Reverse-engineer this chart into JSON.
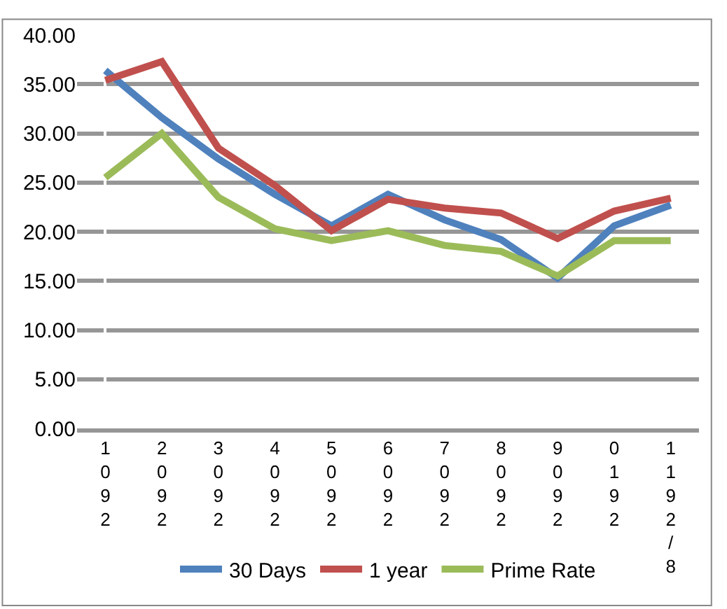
{
  "chart_data": {
    "type": "line",
    "categories": [
      "1\n0\n9\n2",
      "2\n0\n9\n2",
      "3\n0\n9\n2",
      "4\n0\n9\n2",
      "5\n0\n9\n2",
      "6\n0\n9\n2",
      "7\n0\n9\n2",
      "8\n0\n9\n2",
      "9\n0\n9\n2",
      "0\n1\n9\n2",
      "1\n1\n9\n2\n/\n8"
    ],
    "series": [
      {
        "name": "30 Days",
        "color": "#4f81bd",
        "values": [
          36.4,
          31.6,
          27.4,
          23.8,
          20.6,
          23.8,
          21.2,
          19.2,
          15.3,
          20.6,
          22.7
        ]
      },
      {
        "name": "1 year",
        "color": "#c0504d",
        "values": [
          35.4,
          37.3,
          28.5,
          24.7,
          20.1,
          23.3,
          22.4,
          21.9,
          19.3,
          22.1,
          23.4
        ]
      },
      {
        "name": "Prime Rate",
        "color": "#9bbb59",
        "values": [
          25.5,
          30.0,
          23.5,
          20.3,
          19.1,
          20.1,
          18.6,
          18.0,
          15.5,
          19.1,
          19.1
        ]
      }
    ],
    "ylim": [
      0,
      40
    ],
    "yticks": [
      {
        "value": 0,
        "label": "0.00"
      },
      {
        "value": 5,
        "label": "5.00"
      },
      {
        "value": 10,
        "label": "10.00"
      },
      {
        "value": 15,
        "label": "15.00"
      },
      {
        "value": 20,
        "label": "20.00"
      },
      {
        "value": 25,
        "label": "25.00"
      },
      {
        "value": 30,
        "label": "30.00"
      },
      {
        "value": 35,
        "label": "35.00"
      },
      {
        "value": 40,
        "label": "40.00"
      }
    ],
    "grid": "y",
    "legend": "bottom",
    "marker": "none",
    "line_style": "solid"
  }
}
